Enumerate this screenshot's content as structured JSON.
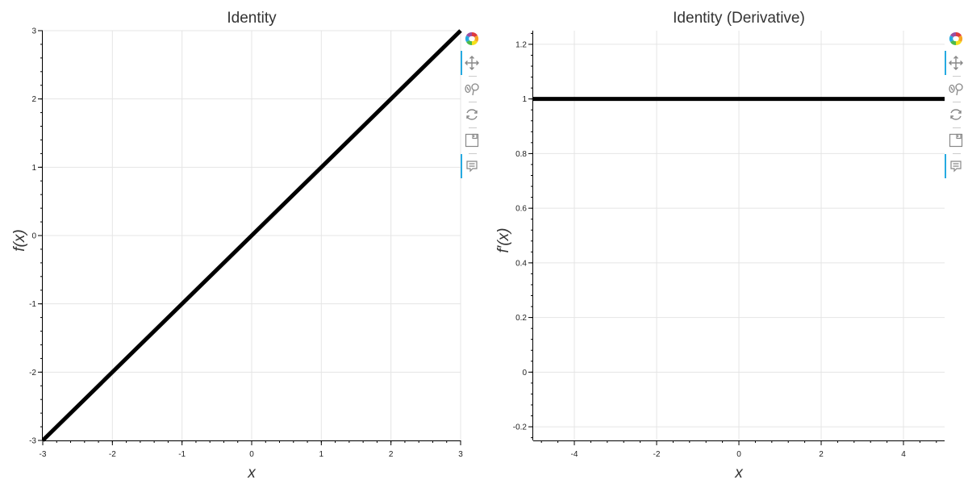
{
  "chart_data": [
    {
      "type": "line",
      "title": "Identity",
      "xlabel": "x",
      "ylabel": "f(x)",
      "xlim": [
        -3,
        3
      ],
      "ylim": [
        -3,
        3
      ],
      "x_ticks": [
        "-3",
        "-2",
        "-1",
        "0",
        "1",
        "2",
        "3"
      ],
      "y_ticks": [
        "-3",
        "-2",
        "-1",
        "0",
        "1",
        "2",
        "3"
      ],
      "grid": true,
      "series": [
        {
          "x": [
            -3,
            3
          ],
          "y": [
            -3,
            3
          ],
          "color": "#000000"
        }
      ]
    },
    {
      "type": "line",
      "title": "Identity (Derivative)",
      "xlabel": "x",
      "ylabel": "f′(x)",
      "xlim": [
        -5,
        5
      ],
      "ylim": [
        -0.25,
        1.25
      ],
      "x_ticks": [
        "-4",
        "-2",
        "0",
        "2",
        "4"
      ],
      "y_ticks": [
        "-0.2",
        "0",
        "0.2",
        "0.4",
        "0.6",
        "0.8",
        "1",
        "1.2"
      ],
      "grid": true,
      "series": [
        {
          "x": [
            -5,
            5
          ],
          "y": [
            1,
            1
          ],
          "color": "#000000"
        }
      ]
    }
  ],
  "toolbar": {
    "tools": [
      {
        "name": "bokeh-logo-icon",
        "active": false
      },
      {
        "name": "pan-tool-icon",
        "active": true
      },
      {
        "name": "wheel-zoom-tool-icon",
        "active": false
      },
      {
        "name": "reset-tool-icon",
        "active": false
      },
      {
        "name": "save-tool-icon",
        "active": false
      },
      {
        "name": "hover-tool-icon",
        "active": true
      }
    ]
  }
}
